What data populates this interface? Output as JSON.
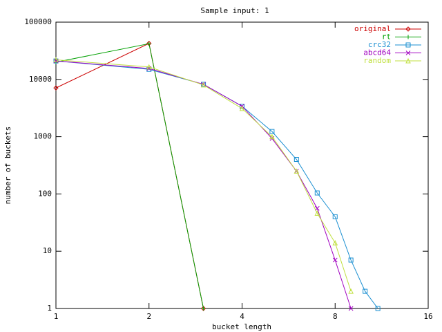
{
  "chart_data": {
    "type": "line",
    "title": "Sample input: 1",
    "xlabel": "bucket length",
    "ylabel": "number of buckets",
    "xlog": true,
    "ylog": true,
    "xlim": [
      1,
      16
    ],
    "xticks": [
      1,
      2,
      4,
      8,
      16
    ],
    "ylim": [
      1,
      100000
    ],
    "yticks": [
      1,
      10,
      100,
      1000,
      10000,
      100000
    ],
    "legend": "top-right",
    "series": [
      {
        "name": "original",
        "color": "#cc0000",
        "marker": "diamond",
        "x": [
          1,
          2,
          3
        ],
        "values": [
          7100,
          42500,
          1
        ]
      },
      {
        "name": "rt",
        "color": "#00a000",
        "marker": "plus",
        "x": [
          1,
          2,
          3
        ],
        "values": [
          20000,
          42000,
          1
        ]
      },
      {
        "name": "crc32",
        "color": "#1a8fd1",
        "marker": "square",
        "x": [
          1,
          2,
          3,
          4,
          5,
          6,
          7,
          8,
          9,
          10,
          11
        ],
        "values": [
          21000,
          15000,
          8200,
          3400,
          1230,
          400,
          104,
          40,
          7,
          2,
          1
        ]
      },
      {
        "name": "abcd64",
        "color": "#a000c0",
        "marker": "cross",
        "x": [
          1,
          2,
          3,
          4,
          5,
          6,
          7,
          8,
          9
        ],
        "values": [
          21000,
          15500,
          8200,
          3400,
          930,
          250,
          56,
          7,
          1
        ]
      },
      {
        "name": "random",
        "color": "#c0e040",
        "marker": "triangle",
        "x": [
          1,
          2,
          3,
          4,
          5,
          6,
          7,
          8,
          9
        ],
        "values": [
          22000,
          16500,
          8000,
          3100,
          1000,
          250,
          46,
          14,
          2
        ]
      }
    ]
  }
}
